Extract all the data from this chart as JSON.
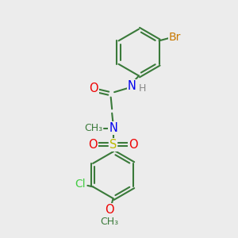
{
  "bg_color": "#ececec",
  "bond_color": "#3a7a3a",
  "bond_width": 1.5,
  "dbo": 0.07,
  "atom_colors": {
    "Br": "#c87800",
    "N": "#0000ee",
    "H": "#888888",
    "O": "#ee0000",
    "S": "#bbbb00",
    "Cl": "#44cc44",
    "C": "#3a7a3a"
  },
  "fs": 10.5,
  "fs_small": 9.0,
  "figsize": [
    3.0,
    3.0
  ],
  "dpi": 100
}
